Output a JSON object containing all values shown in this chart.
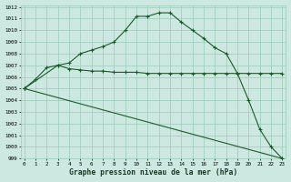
{
  "line1_x": [
    0,
    1,
    2,
    3,
    4,
    5,
    6,
    7,
    8,
    9,
    10,
    11,
    12,
    13,
    14,
    15,
    16,
    17,
    18,
    19,
    20,
    21,
    22,
    23
  ],
  "line1_y": [
    1005.0,
    1005.8,
    1006.8,
    1007.0,
    1007.2,
    1008.0,
    1008.3,
    1008.6,
    1009.0,
    1010.0,
    1011.2,
    1011.2,
    1011.5,
    1011.5,
    1010.7,
    1010.0,
    1009.3,
    1008.5,
    1008.0,
    1006.3,
    1006.3,
    1006.3,
    1006.3,
    1006.3
  ],
  "line2_x": [
    0,
    3,
    4,
    5,
    6,
    7,
    8,
    9,
    10,
    11,
    12,
    13,
    14,
    15,
    16,
    17,
    18,
    19,
    20,
    21,
    22,
    23
  ],
  "line2_y": [
    1005.0,
    1007.0,
    1006.7,
    1006.6,
    1006.5,
    1006.5,
    1006.4,
    1006.4,
    1006.4,
    1006.3,
    1006.3,
    1006.3,
    1006.3,
    1006.3,
    1006.3,
    1006.3,
    1006.3,
    1006.3,
    1004.0,
    1001.5,
    1000.0,
    999.0
  ],
  "line3_x": [
    0,
    23
  ],
  "line3_y": [
    1005.0,
    999.0
  ],
  "bg_color": "#cce8e0",
  "grid_color": "#99ccbb",
  "line_color": "#1a5c28",
  "title": "Graphe pression niveau de la mer (hPa)",
  "ylabel_start": 999,
  "ylabel_end": 1012,
  "xlim": [
    0,
    23
  ],
  "ylim": [
    999,
    1012
  ]
}
